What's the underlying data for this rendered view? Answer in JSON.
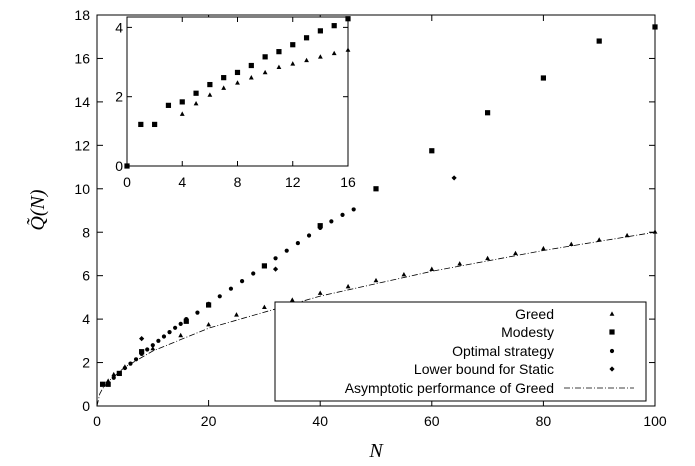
{
  "chart_data": [
    {
      "type": "scatter",
      "role": "main",
      "xlabel": "N",
      "ylabel": "Q̃(N)",
      "xlim": [
        0,
        100
      ],
      "ylim": [
        0,
        18
      ],
      "xticks": [
        0,
        20,
        40,
        60,
        80,
        100
      ],
      "yticks": [
        0,
        2,
        4,
        6,
        8,
        10,
        12,
        14,
        16,
        18
      ],
      "grid": false,
      "legend_position": "bottom-right",
      "series": [
        {
          "name": "Greed",
          "marker": "triangle",
          "x": [
            1,
            2,
            3,
            5,
            10,
            15,
            20,
            25,
            30,
            35,
            40,
            45,
            50,
            55,
            60,
            65,
            70,
            75,
            80,
            85,
            90,
            95,
            100
          ],
          "y": [
            1.0,
            1.15,
            1.45,
            1.8,
            2.65,
            3.25,
            3.75,
            4.2,
            4.55,
            4.88,
            5.2,
            5.5,
            5.78,
            6.05,
            6.3,
            6.55,
            6.8,
            7.03,
            7.25,
            7.45,
            7.65,
            7.85,
            8.02
          ]
        },
        {
          "name": "Modesty",
          "marker": "square",
          "x": [
            1,
            2,
            4,
            8,
            16,
            20,
            30,
            40,
            50,
            60,
            70,
            80,
            90,
            100
          ],
          "y": [
            1.0,
            1.0,
            1.5,
            2.5,
            3.9,
            4.65,
            6.45,
            8.3,
            10.0,
            11.75,
            13.5,
            15.1,
            16.8,
            17.45
          ]
        },
        {
          "name": "Optimal strategy",
          "marker": "dot",
          "x": [
            1,
            2,
            3,
            4,
            5,
            6,
            7,
            8,
            9,
            10,
            11,
            12,
            13,
            14,
            15,
            16,
            18,
            20,
            22,
            24,
            26,
            28,
            30,
            32,
            34,
            36,
            38,
            40,
            42,
            44,
            46
          ],
          "y": [
            1.0,
            1.0,
            1.3,
            1.5,
            1.75,
            1.95,
            2.15,
            2.4,
            2.6,
            2.8,
            3.0,
            3.2,
            3.4,
            3.6,
            3.78,
            4.0,
            4.3,
            4.7,
            5.05,
            5.4,
            5.75,
            6.1,
            6.45,
            6.8,
            7.15,
            7.5,
            7.85,
            8.2,
            8.5,
            8.8,
            9.05
          ]
        },
        {
          "name": "Lower bound for Static",
          "marker": "diamond",
          "x": [
            8,
            32,
            64
          ],
          "y": [
            3.1,
            6.3,
            10.5
          ]
        },
        {
          "name": "Asymptotic performance of Greed",
          "marker": "dashdot-line",
          "x": [
            0,
            0.5,
            1,
            2,
            5,
            10,
            20,
            40,
            60,
            80,
            100
          ],
          "y": [
            0,
            0.56,
            0.8,
            1.13,
            1.79,
            2.53,
            3.58,
            5.06,
            6.2,
            7.16,
            8.0
          ]
        }
      ]
    },
    {
      "type": "scatter",
      "role": "inset",
      "xlim": [
        0,
        16
      ],
      "ylim": [
        0,
        4.3
      ],
      "xticks": [
        0,
        4,
        8,
        12,
        16
      ],
      "yticks": [
        0,
        2,
        4
      ],
      "series": [
        {
          "name": "Greed",
          "marker": "triangle",
          "x": [
            4,
            5,
            6,
            7,
            8,
            9,
            10,
            11,
            12,
            13,
            14,
            15,
            16
          ],
          "y": [
            1.5,
            1.8,
            2.05,
            2.25,
            2.4,
            2.55,
            2.7,
            2.85,
            2.95,
            3.05,
            3.15,
            3.25,
            3.35
          ]
        },
        {
          "name": "Modesty",
          "marker": "square",
          "x": [
            0,
            1,
            2,
            3,
            4,
            5,
            6,
            7,
            8,
            9,
            10,
            11,
            12,
            13,
            14,
            15,
            16
          ],
          "y": [
            0,
            1.2,
            1.2,
            1.75,
            1.85,
            2.1,
            2.35,
            2.55,
            2.7,
            2.9,
            3.15,
            3.3,
            3.5,
            3.7,
            3.9,
            4.05,
            4.25
          ]
        }
      ]
    }
  ],
  "legend": {
    "entries": [
      "Greed",
      "Modesty",
      "Optimal strategy",
      "Lower bound for Static",
      "Asymptotic performance of Greed"
    ]
  }
}
